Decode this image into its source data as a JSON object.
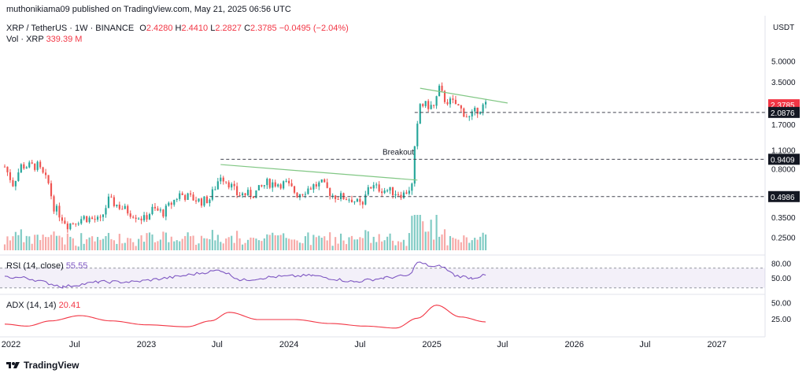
{
  "header": {
    "published_line": "muthonikiama09 published on TradingView.com, May 21, 2025 06:56 UTC",
    "symbol": "XRP / TetherUS · 1W · BINANCE",
    "ohlc": {
      "o_label": "O",
      "o": "2.4280",
      "h_label": "H",
      "h": "2.4410",
      "l_label": "L",
      "l": "2.2827",
      "c_label": "C",
      "c": "2.3785",
      "change": "−0.0495 (−2.04%)"
    },
    "vol_label": "Vol · XRP",
    "vol_value": "339.39 M"
  },
  "brand": {
    "name": "TradingView",
    "logo_icon": "tradingview-logo-icon"
  },
  "colors": {
    "up": "#26a69a",
    "down": "#ef5350",
    "vol_up": "#80cbc4",
    "vol_down": "#f7a9a7",
    "rsi": "#7e57c2",
    "adx": "#f23645",
    "trendline": "#81c784"
  },
  "chart_data": [
    {
      "type": "candlestick",
      "title": "XRP / TetherUS · 1W · BINANCE",
      "y_unit_label": "USDT",
      "y_scale": "log",
      "ylim": [
        0.2,
        6.5
      ],
      "y_ticks": [
        "5.0000",
        "3.5000",
        "1.7000",
        "1.1000",
        "0.8000",
        "0.3500",
        "0.2500"
      ],
      "x_range": [
        "2022-01-01",
        "2027-03-01"
      ],
      "x_ticks": [
        {
          "label": "2022",
          "date": "2022-01-01"
        },
        {
          "label": "Jul",
          "date": "2022-07-01"
        },
        {
          "label": "2023",
          "date": "2023-01-01"
        },
        {
          "label": "Jul",
          "date": "2023-07-01"
        },
        {
          "label": "2024",
          "date": "2024-01-01"
        },
        {
          "label": "Jul",
          "date": "2024-07-01"
        },
        {
          "label": "2025",
          "date": "2025-01-01"
        },
        {
          "label": "Jul",
          "date": "2025-07-01"
        },
        {
          "label": "2026",
          "date": "2026-01-01"
        },
        {
          "label": "Jul",
          "date": "2026-07-01"
        },
        {
          "label": "2027",
          "date": "2027-01-01"
        }
      ],
      "price_path": [
        [
          "2022-01-03",
          0.83
        ],
        [
          "2022-01-24",
          0.62
        ],
        [
          "2022-02-14",
          0.84
        ],
        [
          "2022-03-28",
          0.84
        ],
        [
          "2022-04-25",
          0.62
        ],
        [
          "2022-05-09",
          0.42
        ],
        [
          "2022-06-13",
          0.31
        ],
        [
          "2022-07-25",
          0.35
        ],
        [
          "2022-09-05",
          0.33
        ],
        [
          "2022-09-26",
          0.47
        ],
        [
          "2022-11-07",
          0.4
        ],
        [
          "2022-11-21",
          0.38
        ],
        [
          "2022-12-26",
          0.34
        ],
        [
          "2023-01-16",
          0.4
        ],
        [
          "2023-02-13",
          0.38
        ],
        [
          "2023-03-27",
          0.52
        ],
        [
          "2023-05-22",
          0.46
        ],
        [
          "2023-06-12",
          0.48
        ],
        [
          "2023-07-10",
          0.72
        ],
        [
          "2023-07-31",
          0.63
        ],
        [
          "2023-08-21",
          0.52
        ],
        [
          "2023-10-02",
          0.52
        ],
        [
          "2023-11-06",
          0.63
        ],
        [
          "2023-12-25",
          0.62
        ],
        [
          "2024-01-22",
          0.52
        ],
        [
          "2024-03-04",
          0.6
        ],
        [
          "2024-03-25",
          0.62
        ],
        [
          "2024-04-22",
          0.51
        ],
        [
          "2024-06-10",
          0.48
        ],
        [
          "2024-07-08",
          0.42
        ],
        [
          "2024-07-22",
          0.6
        ],
        [
          "2024-09-02",
          0.56
        ],
        [
          "2024-10-21",
          0.52
        ],
        [
          "2024-11-11",
          0.6
        ],
        [
          "2024-11-18",
          1.1
        ],
        [
          "2024-12-02",
          2.4
        ],
        [
          "2025-01-06",
          2.3
        ],
        [
          "2025-01-20",
          3.1
        ],
        [
          "2025-02-03",
          2.6
        ],
        [
          "2025-03-03",
          2.4
        ],
        [
          "2025-04-07",
          1.9
        ],
        [
          "2025-04-28",
          2.2
        ],
        [
          "2025-05-19",
          2.38
        ]
      ],
      "current_price": "2.3785",
      "price_labels": [
        "2.3785",
        "2.0876",
        "0.9409",
        "0.4986"
      ],
      "horizontal_levels": [
        {
          "value": 2.0876,
          "label": "2.0876",
          "from": "2024-11-18"
        },
        {
          "value": 0.9409,
          "label": "0.9409",
          "from": "2023-07-10"
        },
        {
          "value": 0.4986,
          "label": "0.4986",
          "from": "2023-06-12"
        }
      ],
      "trendlines": [
        {
          "from": [
            "2023-07-10",
            0.86
          ],
          "to": [
            "2024-11-25",
            0.66
          ]
        },
        {
          "from": [
            "2024-12-02",
            3.15
          ],
          "to": [
            "2025-07-14",
            2.45
          ]
        }
      ],
      "annotations": [
        {
          "text": "Breakout",
          "date": "2024-10-07",
          "value": 1.02
        }
      ]
    },
    {
      "type": "line",
      "title": "RSI (14, close)",
      "last_value": "55.55",
      "ylim": [
        20,
        90
      ],
      "y_ticks": [
        "80.00",
        "50.00"
      ],
      "band": [
        30,
        70
      ],
      "path": [
        [
          "2022-01-03",
          52
        ],
        [
          "2022-03-01",
          50
        ],
        [
          "2022-06-01",
          32
        ],
        [
          "2022-09-01",
          42
        ],
        [
          "2022-12-01",
          42
        ],
        [
          "2023-03-15",
          52
        ],
        [
          "2023-07-10",
          66
        ],
        [
          "2023-09-01",
          45
        ],
        [
          "2023-11-15",
          52
        ],
        [
          "2024-03-01",
          55
        ],
        [
          "2024-06-15",
          42
        ],
        [
          "2024-09-01",
          50
        ],
        [
          "2024-11-04",
          55
        ],
        [
          "2024-11-25",
          82
        ],
        [
          "2025-01-06",
          72
        ],
        [
          "2025-01-27",
          74
        ],
        [
          "2025-03-01",
          55
        ],
        [
          "2025-04-14",
          50
        ],
        [
          "2025-05-19",
          55.55
        ]
      ]
    },
    {
      "type": "line",
      "title": "ADX (14, 14)",
      "last_value": "20.41",
      "ylim": [
        0,
        60
      ],
      "y_ticks": [
        "50.00",
        "25.00"
      ],
      "path": [
        [
          "2022-01-03",
          17
        ],
        [
          "2022-03-01",
          14
        ],
        [
          "2022-05-01",
          22
        ],
        [
          "2022-07-15",
          30
        ],
        [
          "2022-10-01",
          22
        ],
        [
          "2023-01-01",
          16
        ],
        [
          "2023-04-15",
          13
        ],
        [
          "2023-06-15",
          22
        ],
        [
          "2023-08-01",
          35
        ],
        [
          "2023-10-15",
          24
        ],
        [
          "2024-01-15",
          24
        ],
        [
          "2024-04-15",
          18
        ],
        [
          "2024-07-15",
          14
        ],
        [
          "2024-10-01",
          11
        ],
        [
          "2024-11-25",
          26
        ],
        [
          "2025-01-13",
          46
        ],
        [
          "2025-03-15",
          28
        ],
        [
          "2025-05-19",
          20.41
        ]
      ]
    }
  ]
}
